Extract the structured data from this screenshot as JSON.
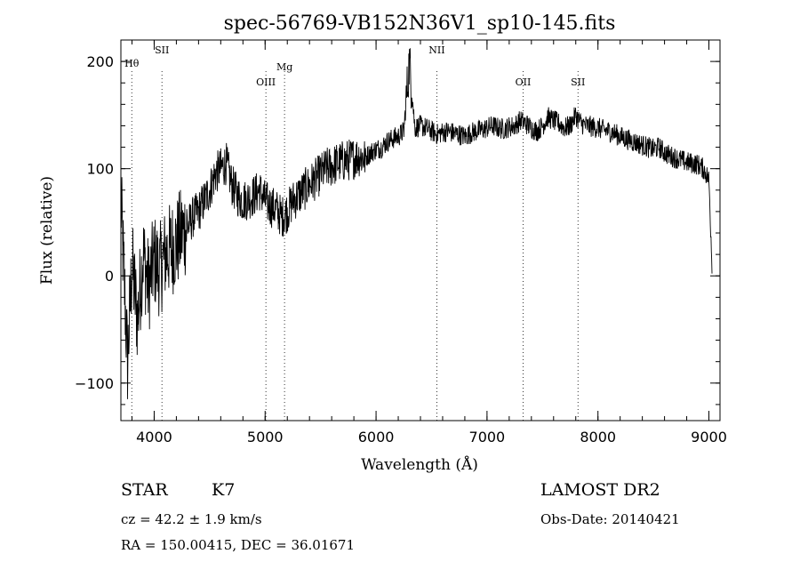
{
  "chart_data": {
    "type": "line",
    "title": "spec-56769-VB152N36V1_sp10-145.fits",
    "xlabel": "Wavelength (Å)",
    "ylabel": "Flux (relative)",
    "xlim": [
      3700,
      9100
    ],
    "ylim": [
      -135,
      220
    ],
    "x_ticks": [
      4000,
      5000,
      6000,
      7000,
      8000,
      9000
    ],
    "y_ticks": [
      -100,
      0,
      100,
      200
    ],
    "grid": false,
    "spectral_lines": [
      {
        "label": "Hθ",
        "wavelength": 3798
      },
      {
        "label": "SII",
        "wavelength": 4070
      },
      {
        "label": "OIII",
        "wavelength": 5007
      },
      {
        "label": "Mg",
        "wavelength": 5175
      },
      {
        "label": "NII",
        "wavelength": 6548
      },
      {
        "label": "OII",
        "wavelength": 7325
      },
      {
        "label": "SII",
        "wavelength": 7820
      }
    ],
    "series": [
      {
        "wavelength": [
          3700,
          3760,
          3800,
          3850,
          3900,
          3950,
          4000,
          4050,
          4100,
          4150,
          4200,
          4250,
          4300,
          4350,
          4400,
          4450,
          4500,
          4550,
          4600,
          4650,
          4700,
          4750,
          4800,
          4850,
          4900,
          4950,
          5000,
          5050,
          5100,
          5150,
          5200,
          5250,
          5300,
          5350,
          5400,
          5450,
          5500,
          5550,
          5600,
          5650,
          5700,
          5750,
          5800,
          5850,
          5900,
          5950,
          6000,
          6050,
          6100,
          6150,
          6200,
          6250,
          6300,
          6350,
          6400,
          6450,
          6500,
          6550,
          6600,
          6650,
          6700,
          6750,
          6800,
          6850,
          6900,
          6950,
          7000,
          7050,
          7100,
          7150,
          7200,
          7250,
          7300,
          7350,
          7400,
          7450,
          7500,
          7550,
          7600,
          7650,
          7700,
          7750,
          7800,
          7850,
          7900,
          7950,
          8000,
          8050,
          8100,
          8150,
          8200,
          8250,
          8300,
          8350,
          8400,
          8450,
          8500,
          8550,
          8600,
          8650,
          8700,
          8750,
          8800,
          8850,
          8900,
          8950,
          9000,
          9030
        ],
        "flux": [
          70,
          -80,
          10,
          -40,
          20,
          -10,
          15,
          5,
          20,
          25,
          30,
          40,
          45,
          55,
          60,
          70,
          80,
          95,
          100,
          105,
          85,
          75,
          70,
          72,
          75,
          80,
          70,
          65,
          62,
          55,
          60,
          70,
          75,
          80,
          85,
          90,
          95,
          100,
          102,
          105,
          107,
          108,
          110,
          112,
          110,
          115,
          118,
          120,
          125,
          128,
          130,
          135,
          200,
          138,
          140,
          138,
          135,
          132,
          134,
          135,
          133,
          132,
          130,
          133,
          135,
          136,
          138,
          140,
          138,
          137,
          139,
          140,
          145,
          142,
          138,
          135,
          140,
          148,
          145,
          142,
          138,
          140,
          150,
          142,
          140,
          139,
          138,
          136,
          135,
          133,
          130,
          128,
          126,
          124,
          122,
          120,
          118,
          120,
          115,
          112,
          110,
          108,
          106,
          105,
          104,
          100,
          90,
          5
        ]
      }
    ]
  },
  "info": {
    "object_class": "STAR",
    "subclass": "K7",
    "survey": "LAMOST DR2",
    "redshift": "cz = 42.2 ± 1.9 km/s",
    "obs_date": "Obs-Date: 20140421",
    "coords": "RA = 150.00415, DEC =  36.01671"
  }
}
